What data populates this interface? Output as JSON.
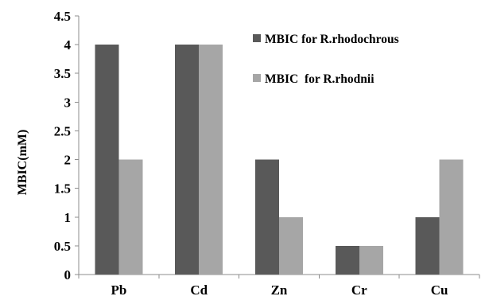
{
  "chart_data": {
    "type": "bar",
    "title": "",
    "xlabel": "",
    "ylabel": "MBIC(mM)",
    "categories": [
      "Pb",
      "Cd",
      "Zn",
      "Cr",
      "Cu"
    ],
    "series": [
      {
        "name": "MBIC for R.rhodochrous",
        "values": [
          4,
          4,
          2,
          0.5,
          1
        ],
        "color": "#595959"
      },
      {
        "name": "MBIC  for R.rhodnii",
        "values": [
          2,
          4,
          1,
          0.5,
          2
        ],
        "color": "#a6a6a6"
      }
    ],
    "ylim": [
      0,
      4.5
    ],
    "yticks": [
      "0",
      "0.5",
      "1",
      "1.5",
      "2",
      "2.5",
      "3",
      "3.5",
      "4",
      "4.5"
    ],
    "grid": false,
    "legend_position": "top-right"
  }
}
